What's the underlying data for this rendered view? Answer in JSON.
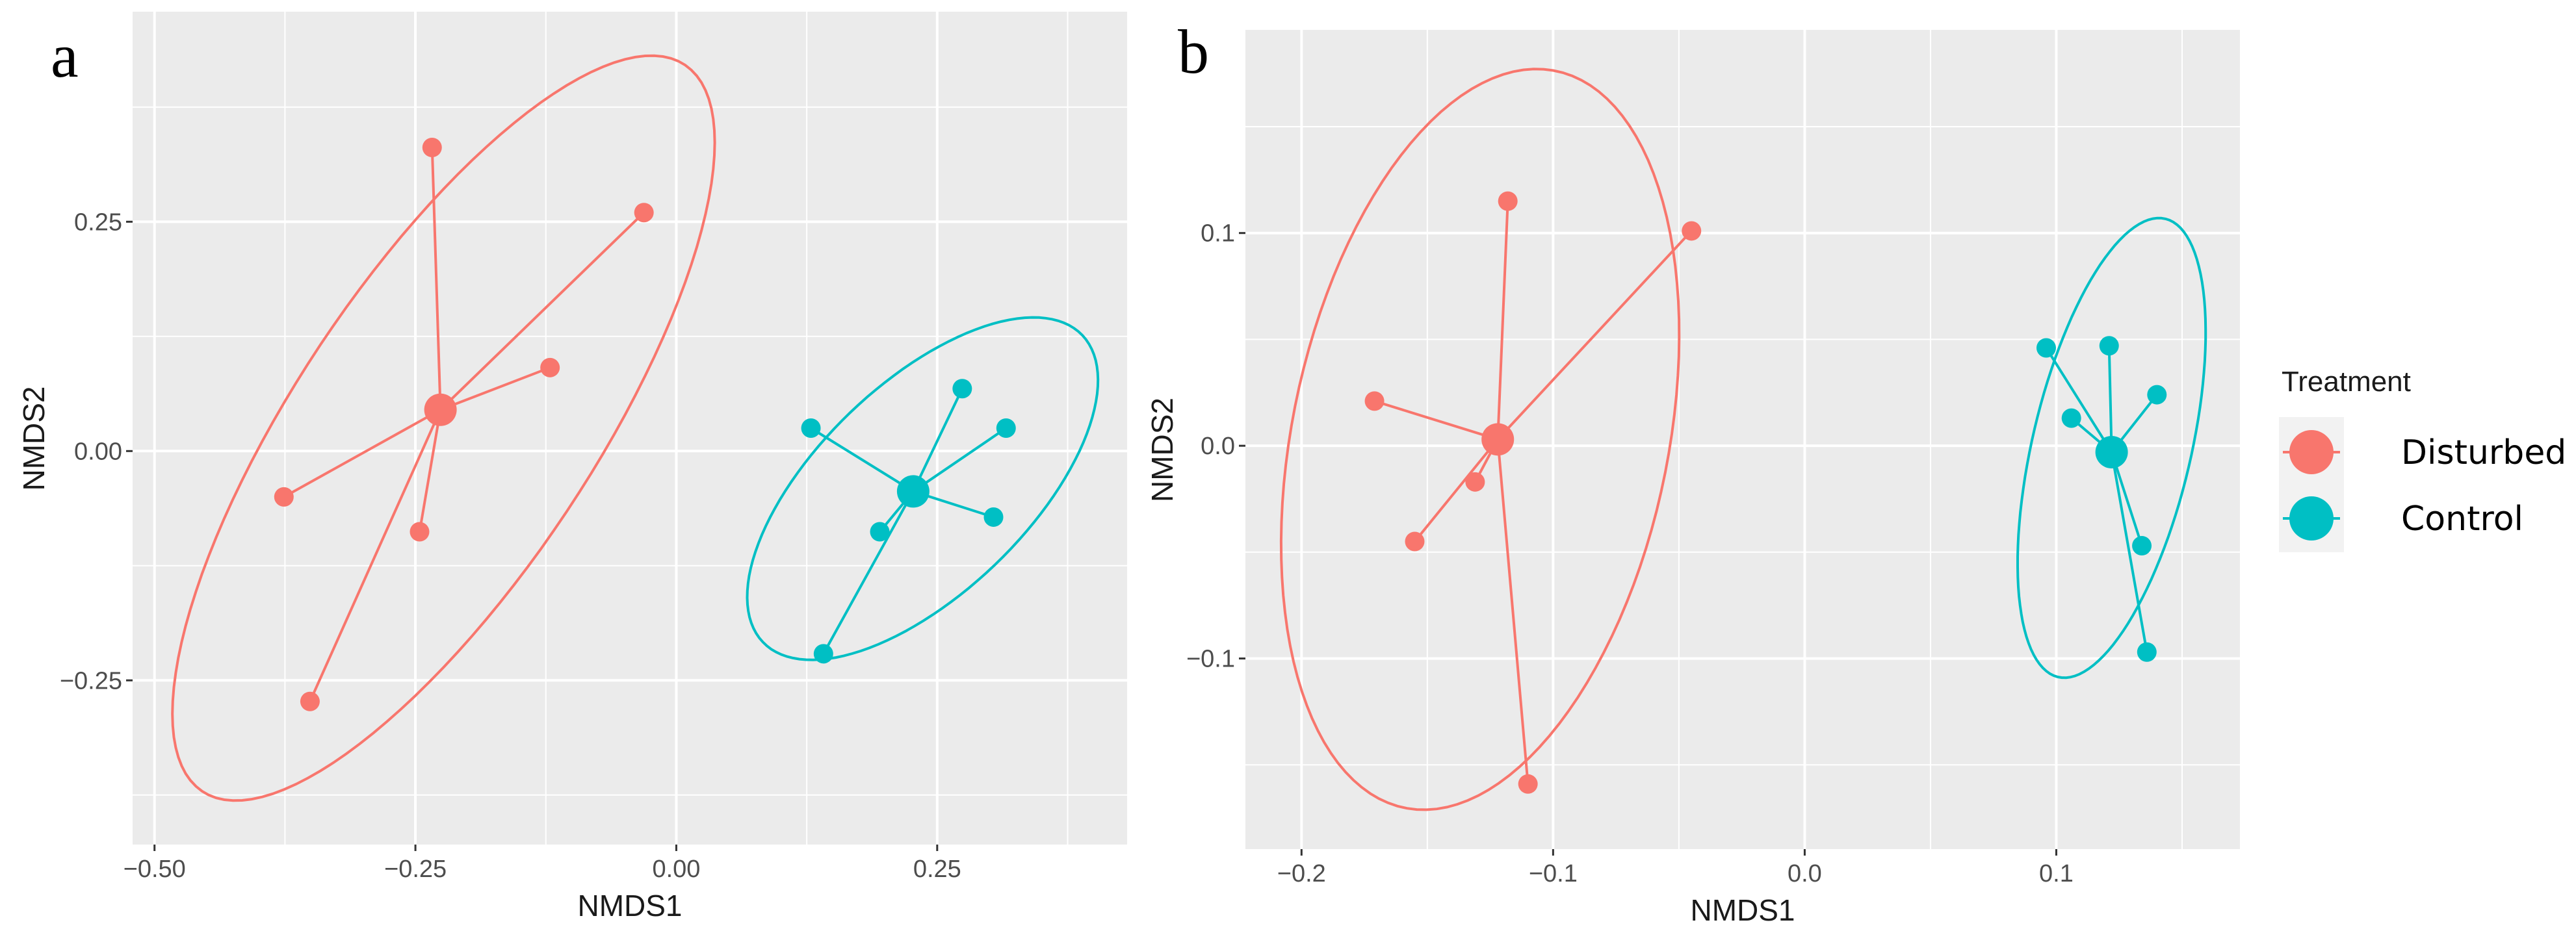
{
  "colors": {
    "Disturbed": "#F8766D",
    "Control": "#00BFC4",
    "panel_bg": "#EBEBEB",
    "grid": "#FFFFFF"
  },
  "legend": {
    "title": "Treatment",
    "entries": [
      "Disturbed",
      "Control"
    ],
    "placement": "right"
  },
  "chart_data": [
    {
      "panel": "a",
      "type": "scatter",
      "xlabel": "NMDS1",
      "ylabel": "NMDS2",
      "xlim": [
        -0.521,
        0.432
      ],
      "ylim": [
        -0.429,
        0.479
      ],
      "xticks": [
        -0.5,
        -0.25,
        0.0,
        0.25
      ],
      "xtick_labels": [
        "−0.50",
        "−0.25",
        "0.00",
        "0.25"
      ],
      "yticks": [
        -0.25,
        0.0,
        0.25
      ],
      "ytick_labels": [
        "−0.25",
        "0.00",
        "0.25"
      ],
      "grid": true,
      "series": [
        {
          "name": "Disturbed",
          "points": [
            [
              -0.234,
              0.331
            ],
            [
              -0.031,
              0.26
            ],
            [
              -0.121,
              0.091
            ],
            [
              -0.376,
              -0.05
            ],
            [
              -0.246,
              -0.088
            ],
            [
              -0.351,
              -0.273
            ]
          ],
          "centroid": [
            -0.226,
            0.045
          ],
          "ellipse": {
            "center": [
              -0.223,
              0.025
            ],
            "axis1": [
              0.225,
              0.4
            ],
            "axis2": [
              0.13,
              -0.07
            ]
          }
        },
        {
          "name": "Control",
          "points": [
            [
              0.129,
              0.025
            ],
            [
              0.274,
              0.068
            ],
            [
              0.316,
              0.025
            ],
            [
              0.304,
              -0.072
            ],
            [
              0.195,
              -0.088
            ],
            [
              0.141,
              -0.221
            ]
          ],
          "centroid": [
            0.227,
            -0.044
          ],
          "ellipse": {
            "center": [
              0.236,
              -0.041
            ],
            "axis1": [
              0.145,
              0.175
            ],
            "axis2": [
              0.085,
              -0.065
            ]
          }
        }
      ]
    },
    {
      "panel": "b",
      "type": "scatter",
      "xlabel": "NMDS1",
      "ylabel": "NMDS2",
      "xlim": [
        -0.2223,
        0.173
      ],
      "ylim": [
        -0.1896,
        0.1955
      ],
      "xticks": [
        -0.2,
        -0.1,
        0.0,
        0.1
      ],
      "xtick_labels": [
        "−0.2",
        "−0.1",
        "0.0",
        "0.1"
      ],
      "yticks": [
        -0.1,
        0.0,
        0.1
      ],
      "ytick_labels": [
        "−0.1",
        "0.0",
        "0.1"
      ],
      "grid": true,
      "series": [
        {
          "name": "Disturbed",
          "points": [
            [
              -0.118,
              0.115
            ],
            [
              -0.045,
              0.101
            ],
            [
              -0.171,
              0.021
            ],
            [
              -0.131,
              -0.017
            ],
            [
              -0.155,
              -0.045
            ],
            [
              -0.11,
              -0.159
            ]
          ],
          "centroid": [
            -0.122,
            0.003
          ],
          "ellipse": {
            "center": [
              -0.129,
              0.003
            ],
            "axis1": [
              0.0252,
              0.174
            ],
            "axis2": [
              0.075,
              -0.0064
            ]
          }
        },
        {
          "name": "Control",
          "points": [
            [
              0.096,
              0.046
            ],
            [
              0.121,
              0.047
            ],
            [
              0.14,
              0.024
            ],
            [
              0.106,
              0.013
            ],
            [
              0.134,
              -0.047
            ],
            [
              0.136,
              -0.097
            ]
          ],
          "centroid": [
            0.122,
            -0.003
          ],
          "ellipse": {
            "center": [
              0.122,
              -0.001
            ],
            "axis1": [
              0.0198,
              0.108
            ],
            "axis2": [
              0.0317,
              -0.0034
            ]
          }
        }
      ]
    }
  ]
}
